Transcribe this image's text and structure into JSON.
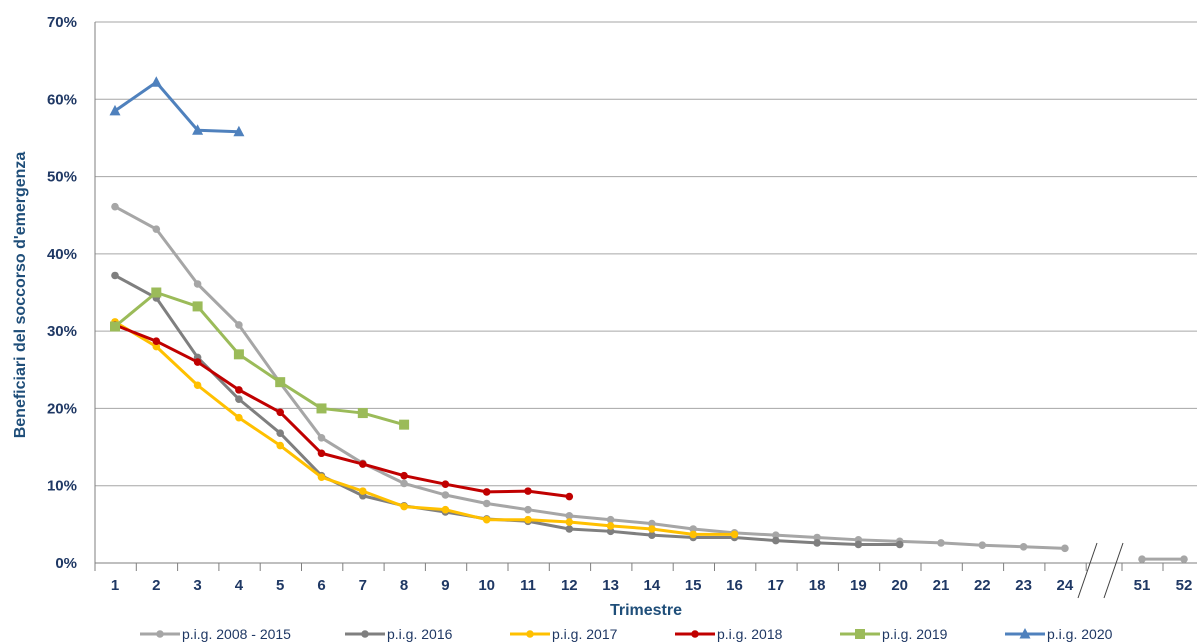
{
  "chart_data": {
    "type": "line",
    "title": "",
    "xlabel": "Trimestre",
    "ylabel": "Beneficiari del soccorso d'emergenza",
    "ylim": [
      0,
      70
    ],
    "y_ticks": [
      "0%",
      "10%",
      "20%",
      "30%",
      "40%",
      "50%",
      "60%",
      "70%"
    ],
    "categories": [
      "1",
      "2",
      "3",
      "4",
      "5",
      "6",
      "7",
      "8",
      "9",
      "10",
      "11",
      "12",
      "13",
      "14",
      "15",
      "16",
      "17",
      "18",
      "19",
      "20",
      "21",
      "22",
      "23",
      "24",
      "51",
      "52"
    ],
    "axis_break": "between 24 and 51",
    "grid": true,
    "legend_position": "bottom",
    "series": [
      {
        "name": "p.i.g. 2008 - 2015",
        "color": "#a6a6a6",
        "marker": "circle",
        "values": [
          46.1,
          43.2,
          36.1,
          30.8,
          23.3,
          16.2,
          12.9,
          10.3,
          8.8,
          7.7,
          6.9,
          6.1,
          5.6,
          5.1,
          4.4,
          3.9,
          3.6,
          3.3,
          3.0,
          2.8,
          2.6,
          2.3,
          2.1,
          1.9,
          0.5,
          0.5
        ]
      },
      {
        "name": "p.i.g. 2016",
        "color": "#7f7f7f",
        "marker": "circle",
        "values": [
          37.2,
          34.3,
          26.6,
          21.2,
          16.8,
          11.3,
          8.7,
          7.4,
          6.6,
          5.7,
          5.4,
          4.4,
          4.1,
          3.6,
          3.3,
          3.3,
          2.9,
          2.6,
          2.4,
          2.4,
          null,
          null,
          null,
          null,
          null,
          null
        ]
      },
      {
        "name": "p.i.g. 2017",
        "color": "#ffc000",
        "marker": "circle",
        "values": [
          31.2,
          28.0,
          23.0,
          18.8,
          15.2,
          11.1,
          9.3,
          7.3,
          6.9,
          5.6,
          5.6,
          5.3,
          4.8,
          4.4,
          3.7,
          3.7,
          null,
          null,
          null,
          null,
          null,
          null,
          null,
          null,
          null,
          null
        ]
      },
      {
        "name": "p.i.g. 2018",
        "color": "#c00000",
        "marker": "circle",
        "values": [
          30.8,
          28.7,
          26.0,
          22.4,
          19.5,
          14.2,
          12.8,
          11.3,
          10.2,
          9.2,
          9.3,
          8.6,
          null,
          null,
          null,
          null,
          null,
          null,
          null,
          null,
          null,
          null,
          null,
          null,
          null,
          null
        ]
      },
      {
        "name": "p.i.g. 2019",
        "color": "#9bbb59",
        "marker": "square",
        "values": [
          30.6,
          35.0,
          33.2,
          27.0,
          23.4,
          20.0,
          19.4,
          17.9,
          null,
          null,
          null,
          null,
          null,
          null,
          null,
          null,
          null,
          null,
          null,
          null,
          null,
          null,
          null,
          null,
          null,
          null
        ]
      },
      {
        "name": "p.i.g. 2020",
        "color": "#4f81bd",
        "marker": "triangle",
        "values": [
          58.5,
          62.2,
          56.0,
          55.8,
          null,
          null,
          null,
          null,
          null,
          null,
          null,
          null,
          null,
          null,
          null,
          null,
          null,
          null,
          null,
          null,
          null,
          null,
          null,
          null,
          null,
          null
        ]
      }
    ]
  }
}
